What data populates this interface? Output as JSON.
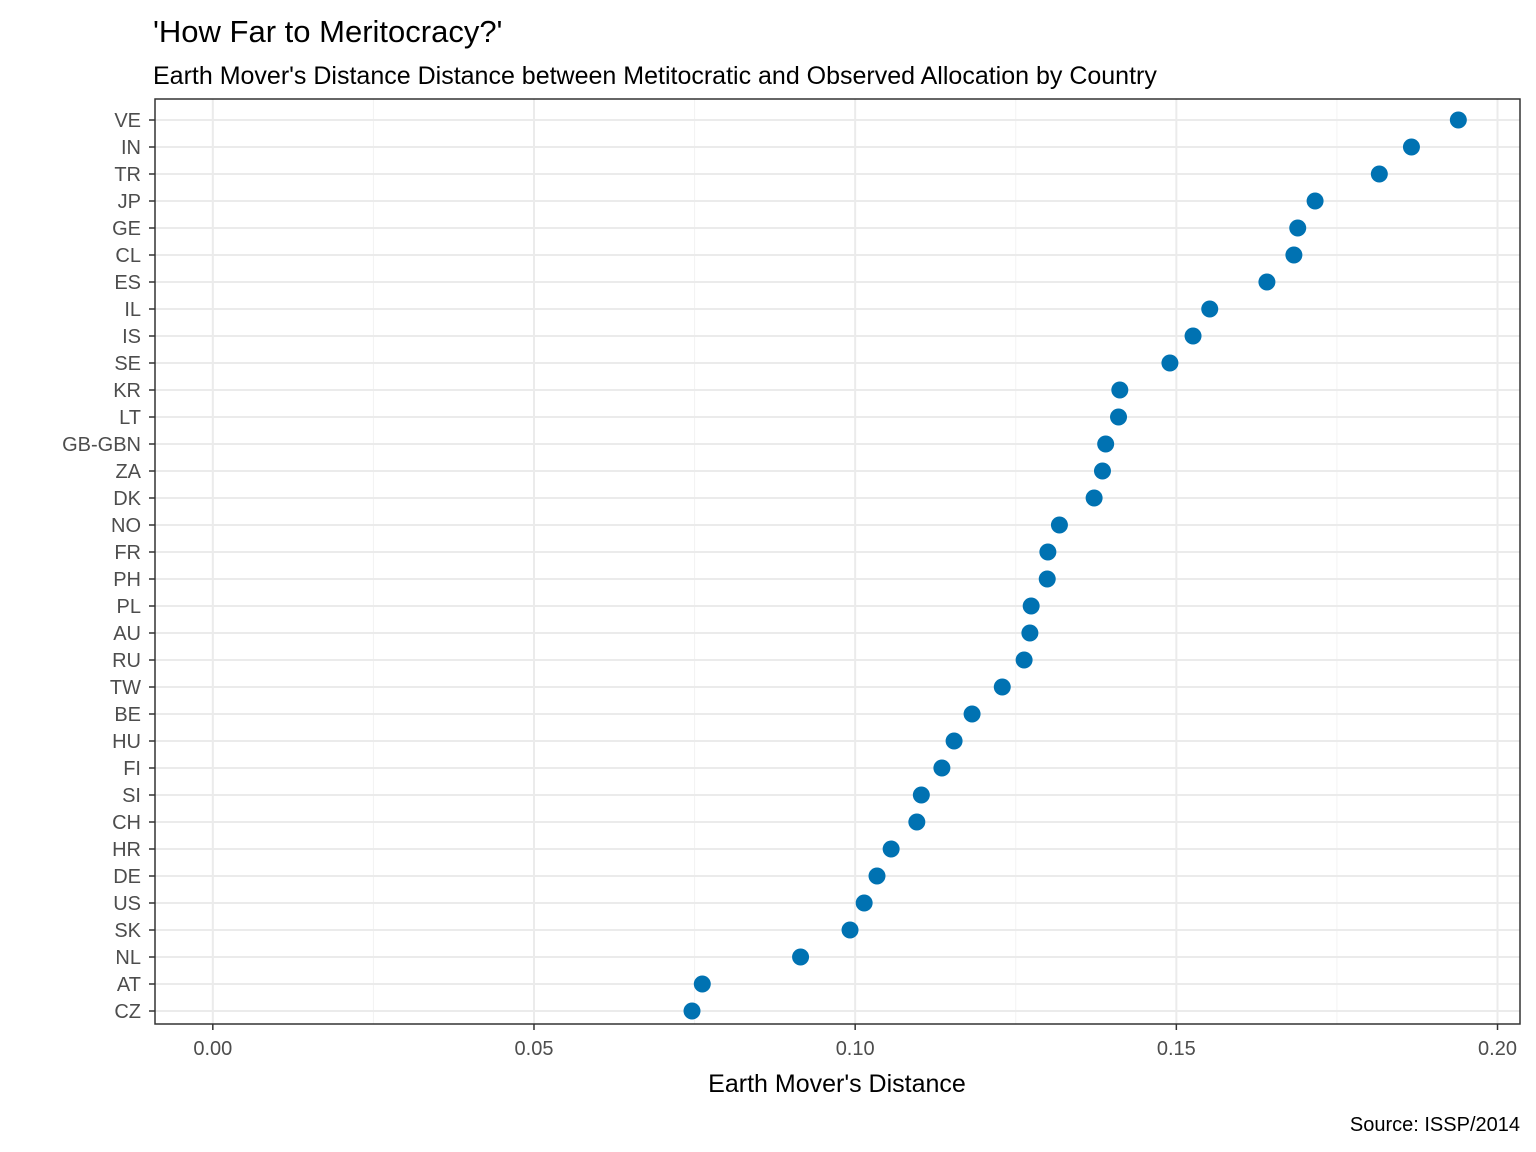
{
  "chart_data": {
    "type": "scatter",
    "title": "'How Far to Meritocracy?'",
    "subtitle": "Earth Mover's Distance Distance between Metitocratic and Observed Allocation by Country",
    "xlabel": "Earth Mover's Distance",
    "ylabel": "",
    "caption": "Source: ISSP/2014",
    "xlim": [
      -0.009,
      0.2035
    ],
    "xticks": [
      0.0,
      0.05,
      0.1,
      0.15,
      0.2
    ],
    "xtick_labels": [
      "0.00",
      "0.05",
      "0.10",
      "0.15",
      "0.20"
    ],
    "grid": true,
    "point_color": "#0072b2",
    "categories": [
      "CZ",
      "AT",
      "NL",
      "SK",
      "US",
      "DE",
      "HR",
      "CH",
      "SI",
      "FI",
      "HU",
      "BE",
      "TW",
      "RU",
      "AU",
      "PL",
      "PH",
      "FR",
      "NO",
      "DK",
      "ZA",
      "GB-GBN",
      "LT",
      "KR",
      "SE",
      "IS",
      "IL",
      "ES",
      "CL",
      "GE",
      "JP",
      "TR",
      "IN",
      "VE"
    ],
    "values": [
      0.0746,
      0.0762,
      0.0915,
      0.0992,
      0.1014,
      0.1034,
      0.1056,
      0.1096,
      0.1103,
      0.1135,
      0.1154,
      0.1182,
      0.1229,
      0.1263,
      0.1272,
      0.1274,
      0.1299,
      0.13,
      0.1318,
      0.1372,
      0.1385,
      0.139,
      0.141,
      0.1412,
      0.149,
      0.1526,
      0.1552,
      0.1641,
      0.1683,
      0.1689,
      0.1716,
      0.1816,
      0.1866,
      0.1939
    ]
  }
}
